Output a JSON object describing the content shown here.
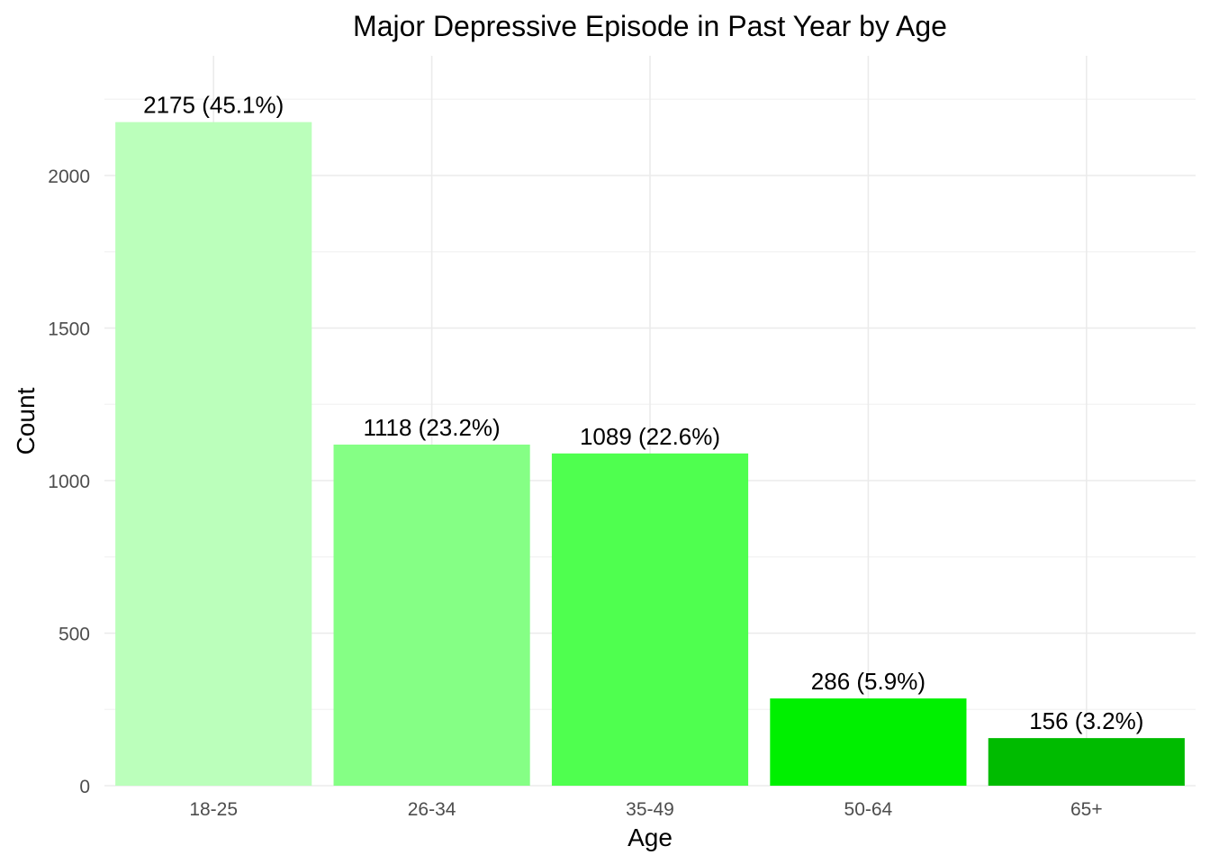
{
  "chart_data": {
    "type": "bar",
    "title": "Major Depressive Episode in Past Year by Age",
    "xlabel": "Age",
    "ylabel": "Count",
    "categories": [
      "18-25",
      "26-34",
      "35-49",
      "50-64",
      "65+"
    ],
    "values": [
      2175,
      1118,
      1089,
      286,
      156
    ],
    "data_labels": [
      "2175 (45.1%)",
      "1118 (23.2%)",
      "1089 (22.6%)",
      "286 (5.9%)",
      "156 (3.2%)"
    ],
    "colors": [
      "#bbffbb",
      "#85ff85",
      "#4fff4f",
      "#00f000",
      "#00bb00"
    ],
    "y_ticks": [
      0,
      500,
      1000,
      1500,
      2000
    ],
    "y_tick_labels": [
      "0",
      "500",
      "1000",
      "1500",
      "2000"
    ],
    "ylim": [
      0,
      2310
    ],
    "grid": true,
    "legend": "none"
  }
}
